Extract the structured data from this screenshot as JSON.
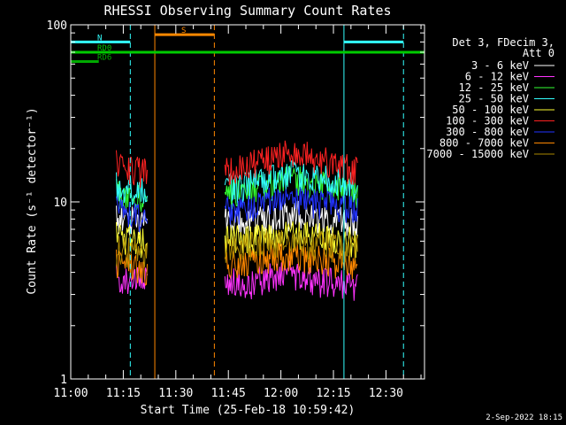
{
  "chart_data": {
    "type": "line",
    "title": "RHESSI Observing Summary Count Rates",
    "xlabel": "Start Time (25-Feb-18 10:59:42)",
    "ylabel": "Count Rate (s⁻¹ detector⁻¹)",
    "y_scale": "log",
    "ylim": [
      1,
      100
    ],
    "xlim_minutes": [
      0,
      101
    ],
    "x_tick_labels": [
      "11:00",
      "11:15",
      "11:30",
      "11:45",
      "12:00",
      "12:15",
      "12:30"
    ],
    "x_tick_minutes": [
      0,
      15,
      30,
      45,
      60,
      75,
      90
    ],
    "y_tick_labels": [
      "1",
      "10",
      "100"
    ],
    "y_tick_values": [
      1,
      10,
      100
    ],
    "legend_header": [
      "Det 3, FDecim 3,",
      "Att 0"
    ],
    "legend_position": "right-outside",
    "series": [
      {
        "name": "3 - 6 keV",
        "color": "#ffffff",
        "segments": [
          {
            "start": 13,
            "end": 22,
            "values": [
              8.2,
              8.1,
              8.0,
              7.9,
              7.8
            ]
          },
          {
            "start": 44,
            "end": 82,
            "values": [
              8.0,
              7.8,
              8.2,
              8.5,
              8.2,
              7.9,
              7.6
            ]
          }
        ]
      },
      {
        "name": "6 - 12 keV",
        "color": "#ff33ff",
        "segments": [
          {
            "start": 13,
            "end": 22,
            "values": [
              3.8,
              3.6,
              3.7,
              3.5,
              3.6
            ]
          },
          {
            "start": 44,
            "end": 82,
            "values": [
              3.7,
              3.4,
              3.8,
              3.9,
              3.6,
              3.5,
              3.4
            ]
          }
        ]
      },
      {
        "name": "12 - 25 keV",
        "color": "#33ff33",
        "segments": [
          {
            "start": 13,
            "end": 22,
            "values": [
              11.5,
              11.0,
              10.8,
              10.5,
              10.2
            ]
          },
          {
            "start": 44,
            "end": 82,
            "values": [
              11.0,
              11.5,
              12.5,
              13.5,
              13.0,
              12.0,
              11.0
            ]
          }
        ]
      },
      {
        "name": "25 - 50 keV",
        "color": "#33ffff",
        "segments": [
          {
            "start": 13,
            "end": 22,
            "values": [
              12.5,
              12.0,
              11.8,
              11.5,
              11.2
            ]
          },
          {
            "start": 44,
            "end": 82,
            "values": [
              12.0,
              12.5,
              13.5,
              14.5,
              14.0,
              13.0,
              12.0
            ]
          }
        ]
      },
      {
        "name": "50 - 100 keV",
        "color": "#ffff33",
        "segments": [
          {
            "start": 13,
            "end": 22,
            "values": [
              6.5,
              6.3,
              6.2,
              6.0,
              5.9
            ]
          },
          {
            "start": 44,
            "end": 82,
            "values": [
              6.2,
              6.1,
              6.4,
              6.6,
              6.4,
              6.2,
              6.0
            ]
          }
        ]
      },
      {
        "name": "100 - 300 keV",
        "color": "#ff2222",
        "segments": [
          {
            "start": 13,
            "end": 22,
            "values": [
              16.5,
              16.0,
              15.5,
              15.0,
              14.5
            ]
          },
          {
            "start": 44,
            "end": 82,
            "values": [
              15.5,
              16.0,
              17.5,
              19.0,
              18.0,
              16.5,
              15.0
            ]
          }
        ]
      },
      {
        "name": "300 - 800 keV",
        "color": "#2233ff",
        "segments": [
          {
            "start": 13,
            "end": 22,
            "values": [
              9.0,
              8.8,
              8.6,
              8.4,
              8.2
            ]
          },
          {
            "start": 44,
            "end": 82,
            "values": [
              9.0,
              9.4,
              10.0,
              10.5,
              10.0,
              9.5,
              9.0
            ]
          }
        ]
      },
      {
        "name": "800 - 7000 keV",
        "color": "#ff8800",
        "segments": [
          {
            "start": 13,
            "end": 22,
            "values": [
              4.5,
              4.4,
              4.3,
              4.2,
              4.1
            ]
          },
          {
            "start": 44,
            "end": 82,
            "values": [
              4.5,
              4.6,
              4.8,
              5.0,
              4.8,
              4.6,
              4.5
            ]
          }
        ]
      },
      {
        "name": "7000 - 15000 keV",
        "color": "#aa8800",
        "segments": [
          {
            "start": 13,
            "end": 22,
            "values": [
              5.4,
              5.3,
              5.2,
              5.1,
              5.0
            ]
          },
          {
            "start": 44,
            "end": 82,
            "values": [
              5.5,
              5.6,
              5.8,
              6.0,
              5.8,
              5.6,
              5.5
            ]
          }
        ]
      }
    ],
    "flags": [
      {
        "label": "RD0",
        "color": "#00cc00",
        "y": 70,
        "intervals": [
          [
            0,
            101
          ]
        ]
      },
      {
        "label": "RD6",
        "color": "#00aa00",
        "y": 62,
        "intervals": [
          [
            0,
            8
          ]
        ]
      },
      {
        "label": "N",
        "color": "#33ffff",
        "y": 80,
        "intervals": [
          [
            0,
            17
          ],
          [
            78,
            95
          ]
        ]
      },
      {
        "label": "S",
        "color": "#ff8800",
        "y": 88,
        "intervals": [
          [
            24,
            41
          ]
        ]
      }
    ],
    "markers": [
      {
        "minute": 0,
        "color": "#33ffff",
        "style": "solid"
      },
      {
        "minute": 17,
        "color": "#33ffff",
        "style": "dashed"
      },
      {
        "minute": 24,
        "color": "#ff8800",
        "style": "solid"
      },
      {
        "minute": 41,
        "color": "#ff8800",
        "style": "dashed"
      },
      {
        "minute": 78,
        "color": "#33ffff",
        "style": "solid"
      },
      {
        "minute": 95,
        "color": "#33ffff",
        "style": "dashed"
      }
    ]
  },
  "footer": {
    "date": "2-Sep-2022 18:15"
  }
}
